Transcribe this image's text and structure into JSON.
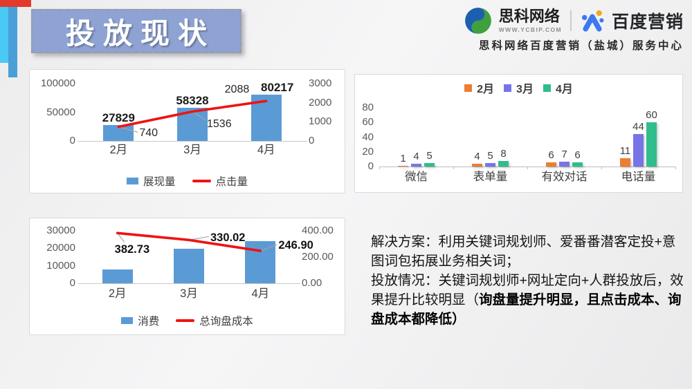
{
  "title": "投放现状",
  "brand": {
    "sike_name": "思科网络",
    "sike_url": "WWW.YCBIP.COM",
    "baidu_name": "百度营销",
    "service_center": "思科网络百度营销（盐城）服务中心"
  },
  "notes": {
    "solution": "解决方案：利用关键词规划师、爱番番潜客定投+意图词包拓展业务相关词；",
    "status_normal": "投放情况：关键词规划师+网址定向+人群投放后，效果提升比较明显（",
    "status_bold": "询盘量提升明显，且点击成本、询盘成本都降低）"
  },
  "chart_data": [
    {
      "type": "bar",
      "subtype": "combo-bar-line",
      "categories": [
        "2月",
        "3月",
        "4月"
      ],
      "bar_series": {
        "name": "展现量",
        "values": [
          27829,
          58328,
          80217
        ],
        "color": "#5B9BD5"
      },
      "line_series": {
        "name": "点击量",
        "values": [
          740,
          1536,
          2088
        ],
        "labels": [
          "740",
          "1536",
          "2088"
        ],
        "color": "#EE1313"
      },
      "y_left": {
        "min": 0,
        "max": 100000,
        "step": 50000,
        "decimals": 0
      },
      "y_right": {
        "min": 0,
        "max": 3000,
        "step": 1000,
        "decimals": 0
      },
      "legend_position": "bottom",
      "grid": false
    },
    {
      "type": "bar",
      "subtype": "grouped-bar",
      "categories": [
        "微信",
        "表单量",
        "有效对话",
        "电话量"
      ],
      "series": [
        {
          "name": "2月",
          "color": "#ED7D31",
          "values": [
            1,
            4,
            6,
            11
          ]
        },
        {
          "name": "3月",
          "color": "#7774E8",
          "values": [
            4,
            5,
            7,
            44
          ]
        },
        {
          "name": "4月",
          "color": "#2FBD8B",
          "values": [
            5,
            8,
            6,
            60
          ]
        }
      ],
      "y": {
        "min": 0,
        "max": 80,
        "step": 20,
        "decimals": 0
      },
      "legend_position": "top",
      "grid": false
    },
    {
      "type": "bar",
      "subtype": "combo-bar-line",
      "categories": [
        "2月",
        "3月",
        "4月"
      ],
      "bar_series": {
        "name": "消费",
        "values": [
          7900,
          19700,
          24100
        ],
        "color": "#5B9BD5"
      },
      "line_series": {
        "name": "总询盘成本",
        "values": [
          382.73,
          330.02,
          246.9
        ],
        "labels": [
          "382.73",
          "330.02",
          "246.90"
        ],
        "color": "#EE1313"
      },
      "y_left": {
        "min": 0,
        "max": 30000,
        "step": 10000,
        "decimals": 0
      },
      "y_right": {
        "min": 0,
        "max": 400,
        "step": 200,
        "decimals": 2
      },
      "legend_position": "bottom",
      "grid": false
    }
  ]
}
